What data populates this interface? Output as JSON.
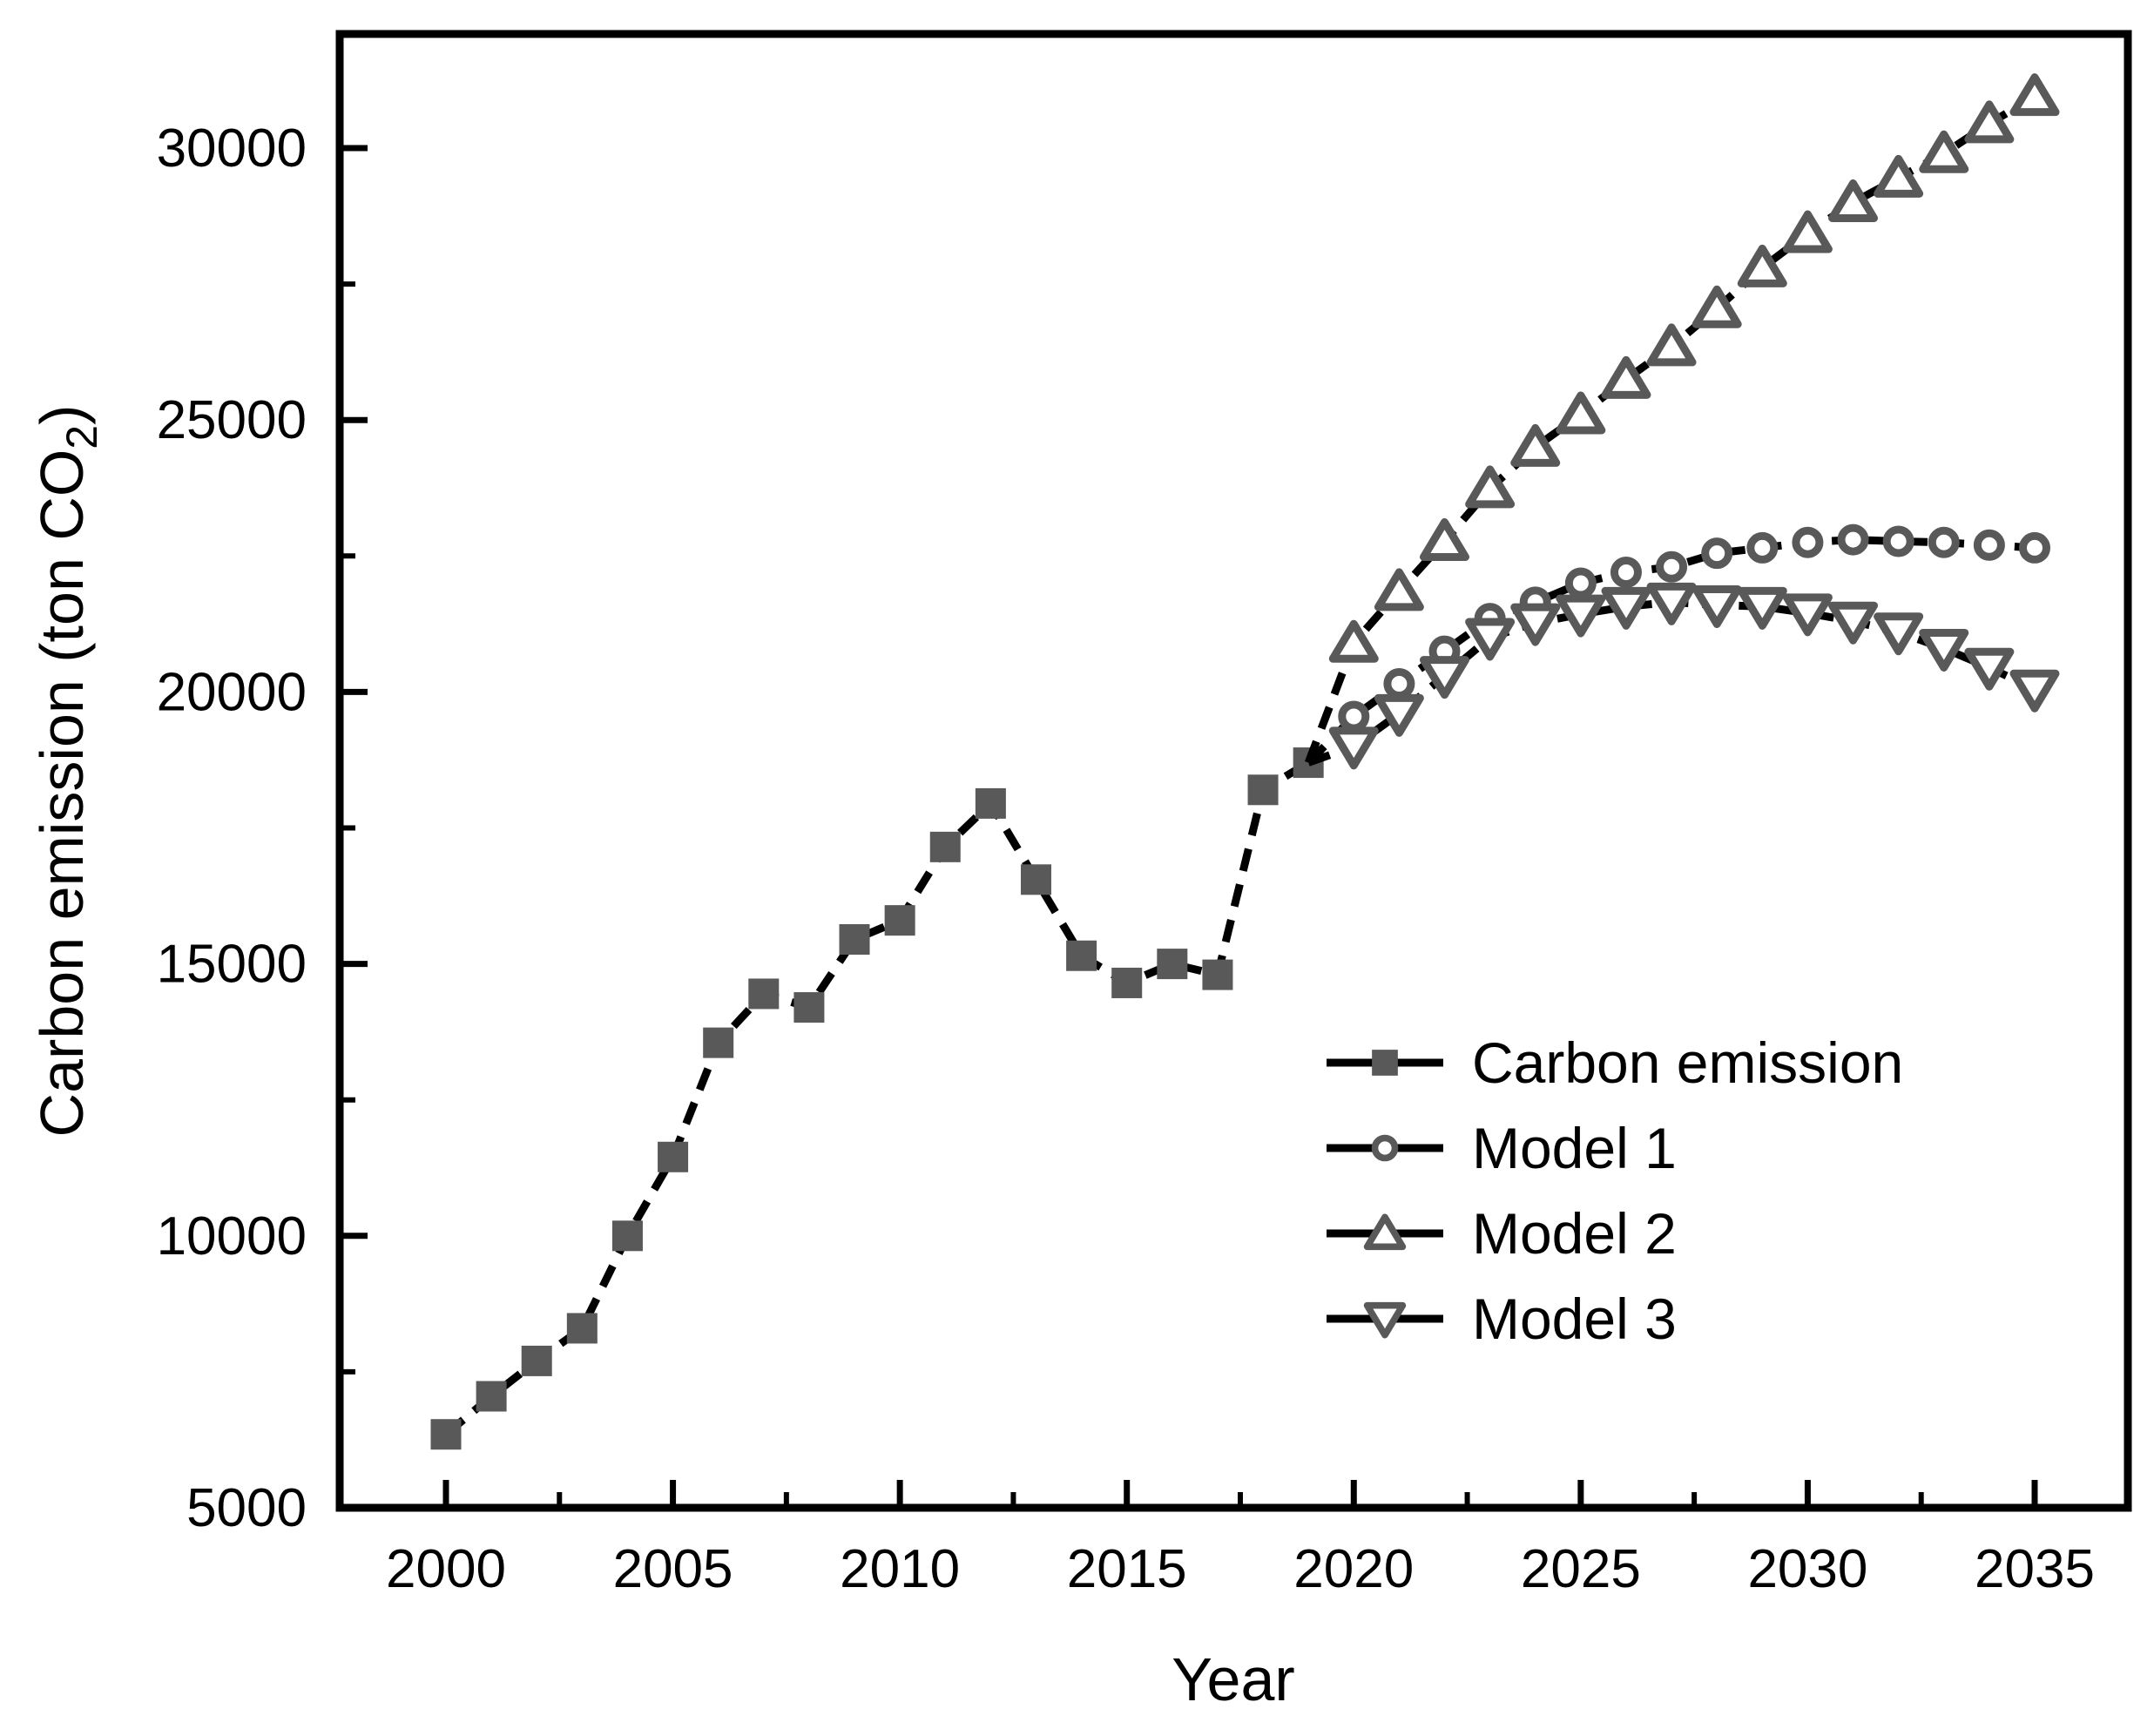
{
  "chart_data": {
    "type": "line",
    "title": "",
    "xlabel": "Year",
    "ylabel": "Carbon emission (ton CO2)",
    "ylabel_rich": {
      "main": "Carbon emission (ton CO",
      "subscript": "2",
      "suffix": ")"
    },
    "xlim": [
      1997.6,
      2037.1
    ],
    "ylim": [
      5000,
      32100
    ],
    "x_ticks": [
      2000,
      2005,
      2010,
      2015,
      2020,
      2025,
      2030,
      2035
    ],
    "x_minor_ticks": [
      2002.5,
      2007.5,
      2012.5,
      2017.5,
      2022.5,
      2027.5,
      2032.5
    ],
    "y_ticks": [
      5000,
      10000,
      15000,
      20000,
      25000,
      30000
    ],
    "y_minor_ticks": [
      7500,
      12500,
      17500,
      22500,
      27500
    ],
    "grid": false,
    "legend_position": "inside lower right",
    "line_style": "dashed",
    "series": [
      {
        "name": "Carbon emission",
        "marker": "filled-square",
        "link_from_previous": false,
        "x": [
          2000,
          2001,
          2002,
          2003,
          2004,
          2005,
          2006,
          2007,
          2008,
          2009,
          2010,
          2011,
          2012,
          2013,
          2014,
          2015,
          2016,
          2017,
          2018,
          2019
        ],
        "values": [
          6350,
          7050,
          7700,
          8300,
          10000,
          11450,
          13550,
          14450,
          14200,
          15450,
          15800,
          17150,
          17950,
          16550,
          15150,
          14650,
          15000,
          14800,
          18200,
          18700
        ]
      },
      {
        "name": "Model 1",
        "marker": "open-circle",
        "link_from_previous": true,
        "x": [
          2020,
          2021,
          2022,
          2023,
          2024,
          2025,
          2026,
          2027,
          2028,
          2029,
          2030,
          2031,
          2032,
          2033,
          2034,
          2035
        ],
        "values": [
          19550,
          20150,
          20750,
          21350,
          21650,
          22000,
          22200,
          22300,
          22550,
          22650,
          22750,
          22800,
          22770,
          22750,
          22700,
          22650
        ]
      },
      {
        "name": "Model 2",
        "marker": "open-triangle-up",
        "link_from_previous": true,
        "x": [
          2020,
          2021,
          2022,
          2023,
          2024,
          2025,
          2026,
          2027,
          2028,
          2029,
          2030,
          2031,
          2032,
          2033,
          2034,
          2035
        ],
        "values": [
          20900,
          21850,
          22770,
          23740,
          24500,
          25100,
          25750,
          26350,
          27050,
          27800,
          28430,
          29000,
          29450,
          29900,
          30450,
          30950
        ]
      },
      {
        "name": "Model 3",
        "marker": "open-triangle-down",
        "link_from_previous": true,
        "x": [
          2020,
          2021,
          2022,
          2023,
          2024,
          2025,
          2026,
          2027,
          2028,
          2029,
          2030,
          2031,
          2032,
          2033,
          2034,
          2035
        ],
        "values": [
          19000,
          19600,
          20300,
          21000,
          21270,
          21430,
          21570,
          21650,
          21600,
          21570,
          21450,
          21300,
          21100,
          20800,
          20450,
          20050
        ]
      }
    ]
  },
  "legend": {
    "items": [
      {
        "label": "Carbon emission",
        "marker": "filled-square"
      },
      {
        "label": "Model 1",
        "marker": "open-circle"
      },
      {
        "label": "Model 2",
        "marker": "open-triangle-up"
      },
      {
        "label": "Model 3",
        "marker": "open-triangle-down"
      }
    ]
  },
  "colors": {
    "background": "#ffffff",
    "axis": "#000000",
    "line": "#000000",
    "marker": "#595959",
    "marker_fill": "#ffffff",
    "text": "#000000"
  }
}
